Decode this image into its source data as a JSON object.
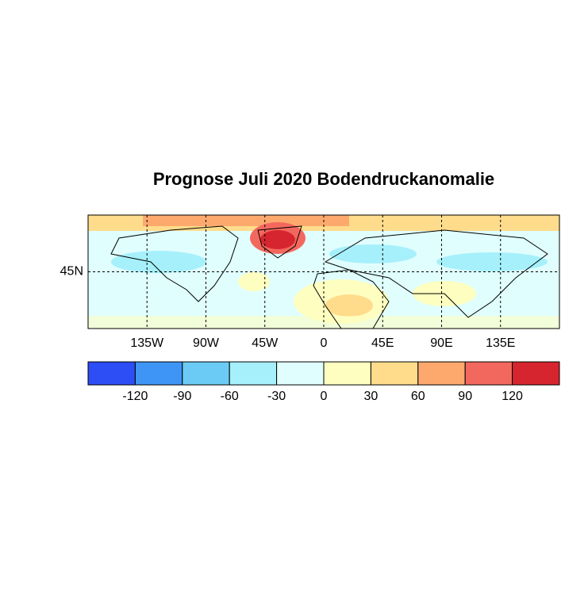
{
  "chart_data": {
    "type": "map",
    "title": "Prognose Juli 2020 Bodendruckanomalie",
    "xlim": [
      -180,
      180
    ],
    "ylim": [
      0,
      90
    ],
    "xticks": [
      {
        "value": -135,
        "label": "135W"
      },
      {
        "value": -90,
        "label": "90W"
      },
      {
        "value": -45,
        "label": "45W"
      },
      0,
      {
        "value": 45,
        "label": "45E"
      },
      {
        "value": 90,
        "label": "90E"
      },
      {
        "value": 135,
        "label": "135E"
      }
    ],
    "yticks": [
      {
        "value": 45,
        "label": "45N"
      }
    ],
    "grid": true,
    "colorbar": {
      "levels": [
        -120,
        -90,
        -60,
        -30,
        0,
        30,
        60,
        90,
        120
      ],
      "colors": [
        "#2d4ef5",
        "#3f95f5",
        "#6bcbf5",
        "#a6f0fb",
        "#e0fefe",
        "#fefec0",
        "#fedc8c",
        "#fda96e",
        "#f3685e",
        "#d6252e"
      ]
    }
  }
}
